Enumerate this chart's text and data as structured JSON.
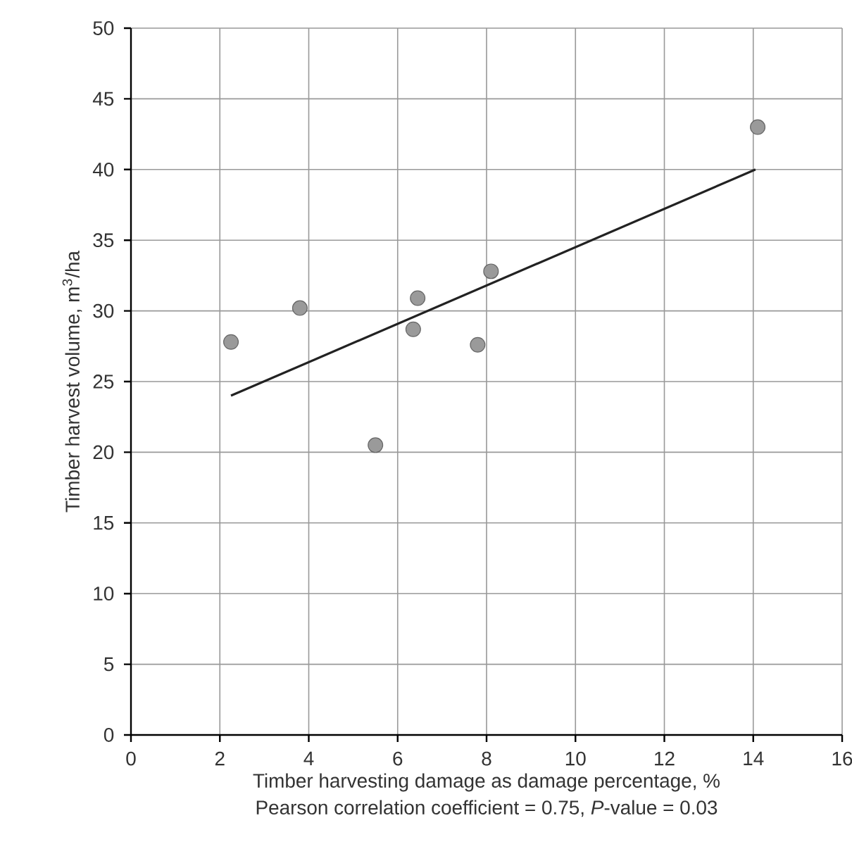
{
  "chart_data": {
    "type": "scatter",
    "xlabel": "Timber harvesting damage as damage percentage, %",
    "ylabel": "Timber harvest volume, m$^{3}$/ha",
    "annotations": [
      "Pearson correlation coefficient = 0.75, *P*-value = 0.03"
    ],
    "xlim": [
      0,
      16
    ],
    "xticks": [
      0,
      2,
      4,
      6,
      8,
      10,
      12,
      14,
      16
    ],
    "ylim": [
      0,
      50
    ],
    "yticks": [
      0,
      5,
      10,
      15,
      20,
      25,
      30,
      35,
      40,
      45,
      50
    ],
    "grid": true,
    "series": [
      {
        "color": "#9a9a9a",
        "marker": "circle",
        "x": [
          2.25,
          3.8,
          5.5,
          6.35,
          6.45,
          7.8,
          8.1,
          14.1
        ],
        "values": [
          27.8,
          30.2,
          20.5,
          28.7,
          30.9,
          27.6,
          32.8,
          43
        ]
      },
      {
        "type": "line",
        "color": "#222222",
        "marker": "none",
        "line_style": "solid",
        "x": [
          2.25,
          14.05
        ],
        "values": [
          24,
          40
        ]
      }
    ]
  }
}
